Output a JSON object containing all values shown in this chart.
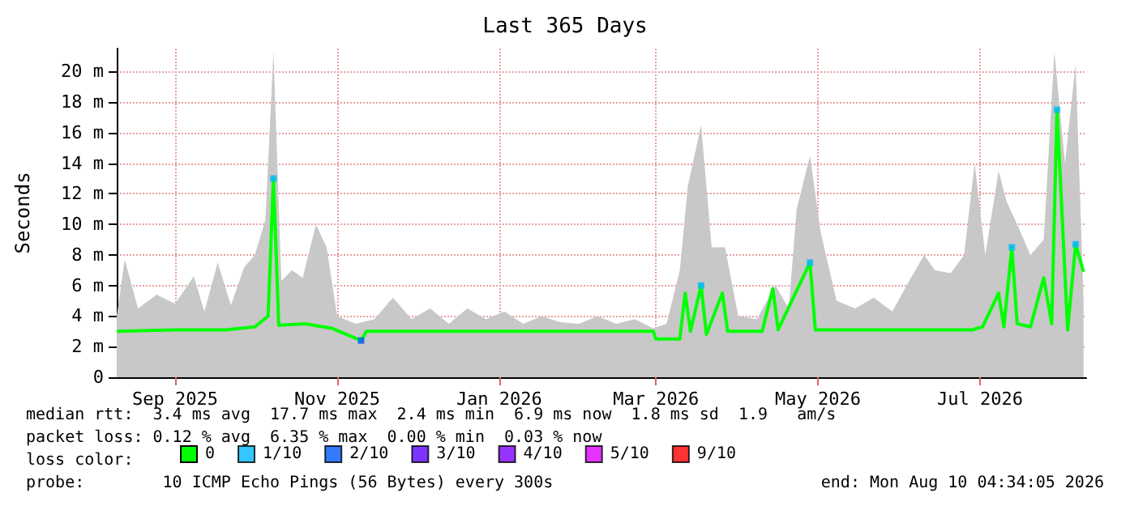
{
  "chart_data": {
    "type": "line",
    "title": "Last 365 Days",
    "ylabel": "Seconds",
    "xlim": [
      "2025-08-10",
      "2026-08-10"
    ],
    "xticks": [
      {
        "value": "2025-09-01",
        "label": "Sep 2025"
      },
      {
        "value": "2025-11-01",
        "label": "Nov 2025"
      },
      {
        "value": "2026-01-01",
        "label": "Jan 2026"
      },
      {
        "value": "2026-03-01",
        "label": "Mar 2026"
      },
      {
        "value": "2026-05-01",
        "label": "May 2026"
      },
      {
        "value": "2026-07-01",
        "label": "Jul 2026"
      }
    ],
    "ylim": [
      0,
      21.5
    ],
    "yticks": [
      0,
      {
        "value": 2,
        "label": "2 m"
      },
      {
        "value": 4,
        "label": "4 m"
      },
      {
        "value": 6,
        "label": "6 m"
      },
      {
        "value": 8,
        "label": "8 m"
      },
      {
        "value": 10,
        "label": "10 m"
      },
      {
        "value": 12,
        "label": "12 m"
      },
      {
        "value": 14,
        "label": "14 m"
      },
      {
        "value": 16,
        "label": "16 m"
      },
      {
        "value": 18,
        "label": "18 m"
      },
      {
        "value": 20,
        "label": "20 m"
      }
    ],
    "grid": true,
    "legend": "bottom left",
    "series": [
      {
        "type": "area",
        "color": "#c8c8c8",
        "x": [
          "2025-08-10",
          "2025-08-13",
          "2025-08-18",
          "2025-08-25",
          "2025-09-01",
          "2025-09-08",
          "2025-09-12",
          "2025-09-17",
          "2025-09-22",
          "2025-09-27",
          "2025-10-01",
          "2025-10-05",
          "2025-10-08",
          "2025-10-11",
          "2025-10-15",
          "2025-10-19",
          "2025-10-24",
          "2025-10-28",
          "2025-11-01",
          "2025-11-08",
          "2025-11-15",
          "2025-11-22",
          "2025-11-29",
          "2025-12-06",
          "2025-12-13",
          "2025-12-20",
          "2025-12-27",
          "2026-01-03",
          "2026-01-10",
          "2026-01-17",
          "2026-01-24",
          "2026-01-31",
          "2026-02-07",
          "2026-02-14",
          "2026-02-21",
          "2026-02-28",
          "2026-03-05",
          "2026-03-10",
          "2026-03-13",
          "2026-03-18",
          "2026-03-22",
          "2026-03-27",
          "2026-04-01",
          "2026-04-08",
          "2026-04-15",
          "2026-04-20",
          "2026-04-23",
          "2026-04-28",
          "2026-05-02",
          "2026-05-08",
          "2026-05-15",
          "2026-05-22",
          "2026-05-29",
          "2026-06-05",
          "2026-06-10",
          "2026-06-14",
          "2026-06-20",
          "2026-06-25",
          "2026-06-29",
          "2026-07-03",
          "2026-07-08",
          "2026-07-11",
          "2026-07-15",
          "2026-07-20",
          "2026-07-25",
          "2026-07-29",
          "2026-08-02",
          "2026-08-06",
          "2026-08-09"
        ],
        "values": [
          4,
          7.7,
          4.5,
          5.4,
          4.8,
          6.6,
          4.3,
          7.5,
          4.7,
          7.2,
          8,
          10.3,
          21.3,
          6.3,
          7,
          6.5,
          10,
          8.5,
          4,
          3.5,
          3.8,
          5.2,
          3.8,
          4.5,
          3.5,
          4.5,
          3.8,
          4.3,
          3.5,
          4,
          3.6,
          3.5,
          4,
          3.5,
          3.8,
          3.2,
          3.5,
          7,
          12.5,
          16.5,
          8.5,
          8.5,
          4,
          3.8,
          6,
          4.5,
          11,
          14.5,
          9.5,
          5,
          4.5,
          5.2,
          4.3,
          6.5,
          8,
          7,
          6.8,
          8,
          14,
          8,
          13.5,
          11.5,
          10,
          8,
          9,
          21.3,
          14,
          20.5,
          5
        ]
      },
      {
        "name": "0",
        "color": "#00ff00",
        "x": [
          "2025-08-10",
          "2025-09-01",
          "2025-09-20",
          "2025-10-01",
          "2025-10-06",
          "2025-10-08",
          "2025-10-10",
          "2025-10-20",
          "2025-10-30",
          "2025-11-10",
          "2025-11-12",
          "2025-12-15",
          "2026-01-15",
          "2026-02-28",
          "2026-03-01",
          "2026-03-10",
          "2026-03-12",
          "2026-03-14",
          "2026-03-18",
          "2026-03-20",
          "2026-03-26",
          "2026-03-28",
          "2026-04-10",
          "2026-04-14",
          "2026-04-16",
          "2026-04-28",
          "2026-04-30",
          "2026-06-28",
          "2026-07-02",
          "2026-07-08",
          "2026-07-10",
          "2026-07-13",
          "2026-07-15",
          "2026-07-20",
          "2026-07-25",
          "2026-07-28",
          "2026-07-30",
          "2026-08-03",
          "2026-08-06",
          "2026-08-09"
        ],
        "values": [
          3,
          3.1,
          3.1,
          3.3,
          4,
          13,
          3.4,
          3.5,
          3.2,
          2.4,
          3,
          3,
          3,
          3,
          2.5,
          2.5,
          5.5,
          3,
          6,
          2.8,
          5.5,
          3,
          3,
          5.8,
          3.1,
          7.5,
          3.1,
          3.1,
          3.3,
          5.5,
          3.3,
          8.5,
          3.5,
          3.3,
          6.5,
          3.5,
          17.5,
          3.1,
          8.7,
          6.9
        ]
      },
      {
        "name": "1/10",
        "type": "scatter",
        "color": "#00b8ff",
        "x": [
          "2025-10-08",
          "2026-03-18",
          "2026-04-28",
          "2026-07-13",
          "2026-07-30",
          "2026-08-06"
        ],
        "values": [
          13,
          6,
          7.5,
          8.5,
          17.5,
          8.7
        ]
      },
      {
        "name": "2/10",
        "type": "scatter",
        "color": "#0059ff",
        "x": [
          "2025-11-10"
        ],
        "values": [
          2.4
        ]
      },
      {
        "name": "3/10",
        "type": "scatter",
        "color": "#5e00ff"
      },
      {
        "name": "4/10",
        "type": "scatter",
        "color": "#7e00ff"
      },
      {
        "name": "5/10",
        "type": "scatter",
        "color": "#dd00ff"
      },
      {
        "name": "9/10",
        "type": "scatter",
        "color": "#ff0000"
      }
    ],
    "annotations": [
      "median rtt:  3.4 ms avg  17.7 ms max  2.4 ms min  6.9 ms now  1.8 ms sd  1.9   am/s",
      "packet loss: 0.12 % avg  6.35 % max  0.00 % min  0.03 % now",
      "loss color:",
      "probe:        10 ICMP Echo Pings (56 Bytes) every 300s",
      "end: Mon Aug 10 04:34:05 2026"
    ]
  }
}
